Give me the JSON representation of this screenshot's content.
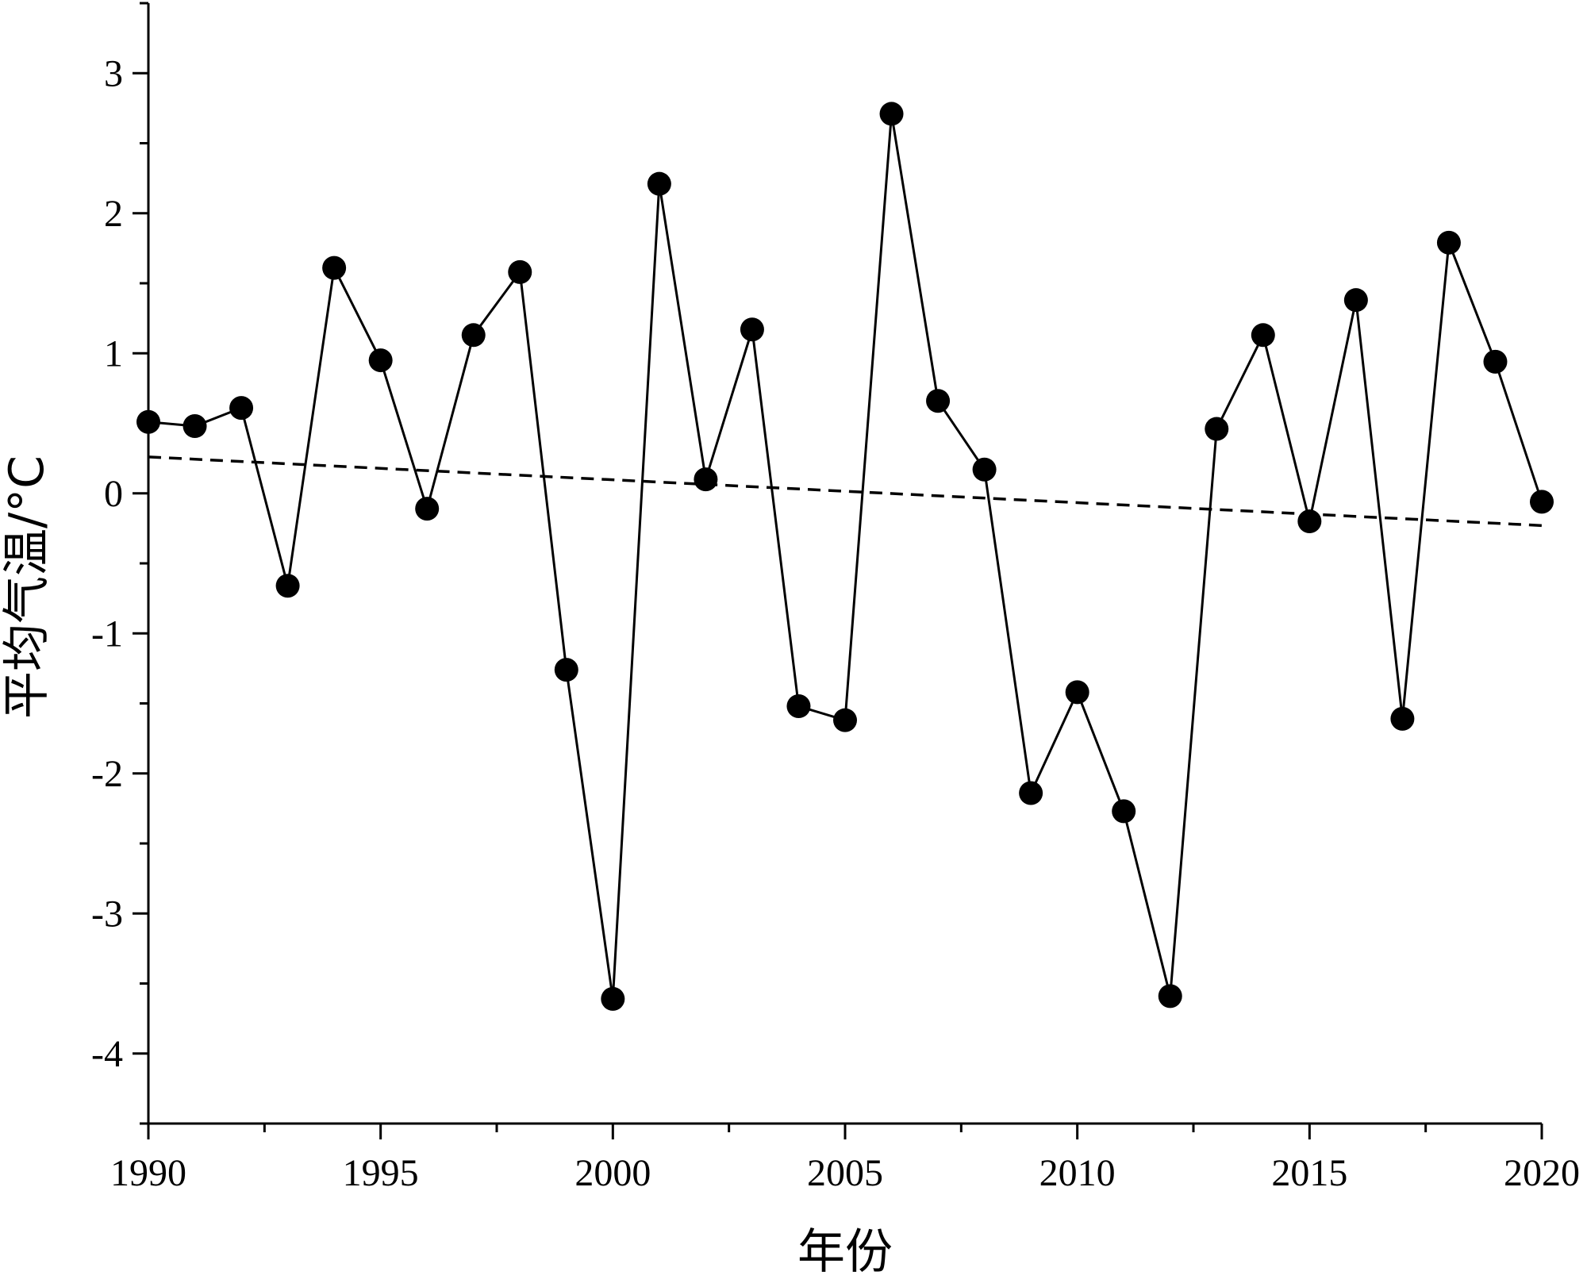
{
  "chart_data": {
    "type": "line",
    "xlabel": "年份",
    "ylabel": "平均气温/°C",
    "xlim": [
      1990,
      2020
    ],
    "ylim": [
      -4.5,
      3.5
    ],
    "x_ticks": [
      1990,
      1995,
      2000,
      2005,
      2010,
      2015,
      2020
    ],
    "y_ticks": [
      -4,
      -3,
      -2,
      -1,
      0,
      1,
      2,
      3
    ],
    "series": [
      {
        "style": "solid line with filled circle markers",
        "color": "#000000",
        "x": [
          1990,
          1991,
          1992,
          1993,
          1994,
          1995,
          1996,
          1997,
          1998,
          1999,
          2000,
          2001,
          2002,
          2003,
          2004,
          2005,
          2006,
          2007,
          2008,
          2009,
          2010,
          2011,
          2012,
          2013,
          2014,
          2015,
          2016,
          2017,
          2018,
          2019,
          2020
        ],
        "values": [
          0.51,
          0.48,
          0.61,
          -0.66,
          1.61,
          0.95,
          -0.11,
          1.13,
          1.58,
          -1.26,
          -3.61,
          2.21,
          0.1,
          1.17,
          -1.52,
          -1.62,
          2.71,
          0.66,
          0.17,
          -2.14,
          -1.42,
          -2.27,
          -3.59,
          0.46,
          1.13,
          -0.2,
          1.38,
          -1.61,
          1.79,
          0.94,
          -0.06
        ]
      },
      {
        "style": "dashed linear trend line",
        "color": "#000000",
        "x": [
          1990,
          2020
        ],
        "values": [
          0.26,
          -0.23
        ]
      }
    ],
    "grid": false,
    "legend": "none"
  }
}
